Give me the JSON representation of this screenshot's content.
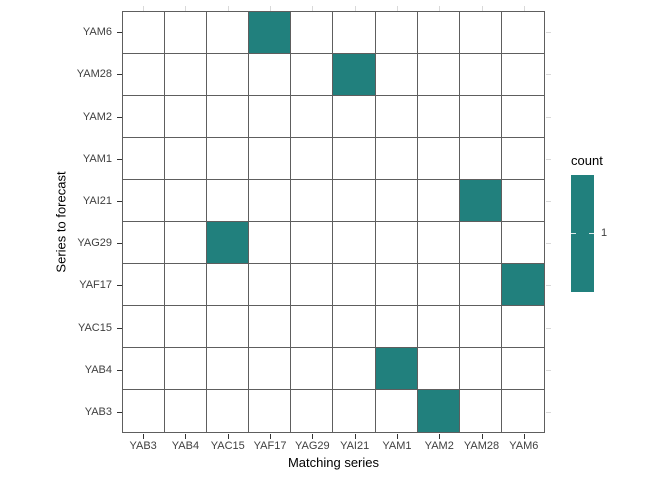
{
  "chart_data": {
    "type": "heatmap",
    "xlabel": "Matching series",
    "ylabel": "Series to forecast",
    "x_categories": [
      "YAB3",
      "YAB4",
      "YAC15",
      "YAF17",
      "YAG29",
      "YAI21",
      "YAM1",
      "YAM2",
      "YAM28",
      "YAM6"
    ],
    "y_categories_top_to_bottom": [
      "YAM6",
      "YAM28",
      "YAM2",
      "YAM1",
      "YAI21",
      "YAG29",
      "YAF17",
      "YAC15",
      "YAB4",
      "YAB3"
    ],
    "cells": [
      {
        "x": "YAF17",
        "y": "YAM6",
        "count": 1
      },
      {
        "x": "YAI21",
        "y": "YAM28",
        "count": 1
      },
      {
        "x": "YAM28",
        "y": "YAI21",
        "count": 1
      },
      {
        "x": "YAC15",
        "y": "YAG29",
        "count": 1
      },
      {
        "x": "YAM6",
        "y": "YAF17",
        "count": 1
      },
      {
        "x": "YAM1",
        "y": "YAB4",
        "count": 1
      },
      {
        "x": "YAM2",
        "y": "YAB3",
        "count": 1
      }
    ],
    "legend": {
      "title": "count",
      "tick_label": "1"
    },
    "layout": {
      "grid_on": true,
      "legend_position": "right"
    },
    "colors": {
      "fill": "#21807D",
      "empty": "#ffffff",
      "cell_border": "#5e5e5e",
      "tick_dark": "#333333",
      "tick_light": "#d9d9d9",
      "axis_label": "#404040",
      "axis_title": "#000000"
    }
  }
}
